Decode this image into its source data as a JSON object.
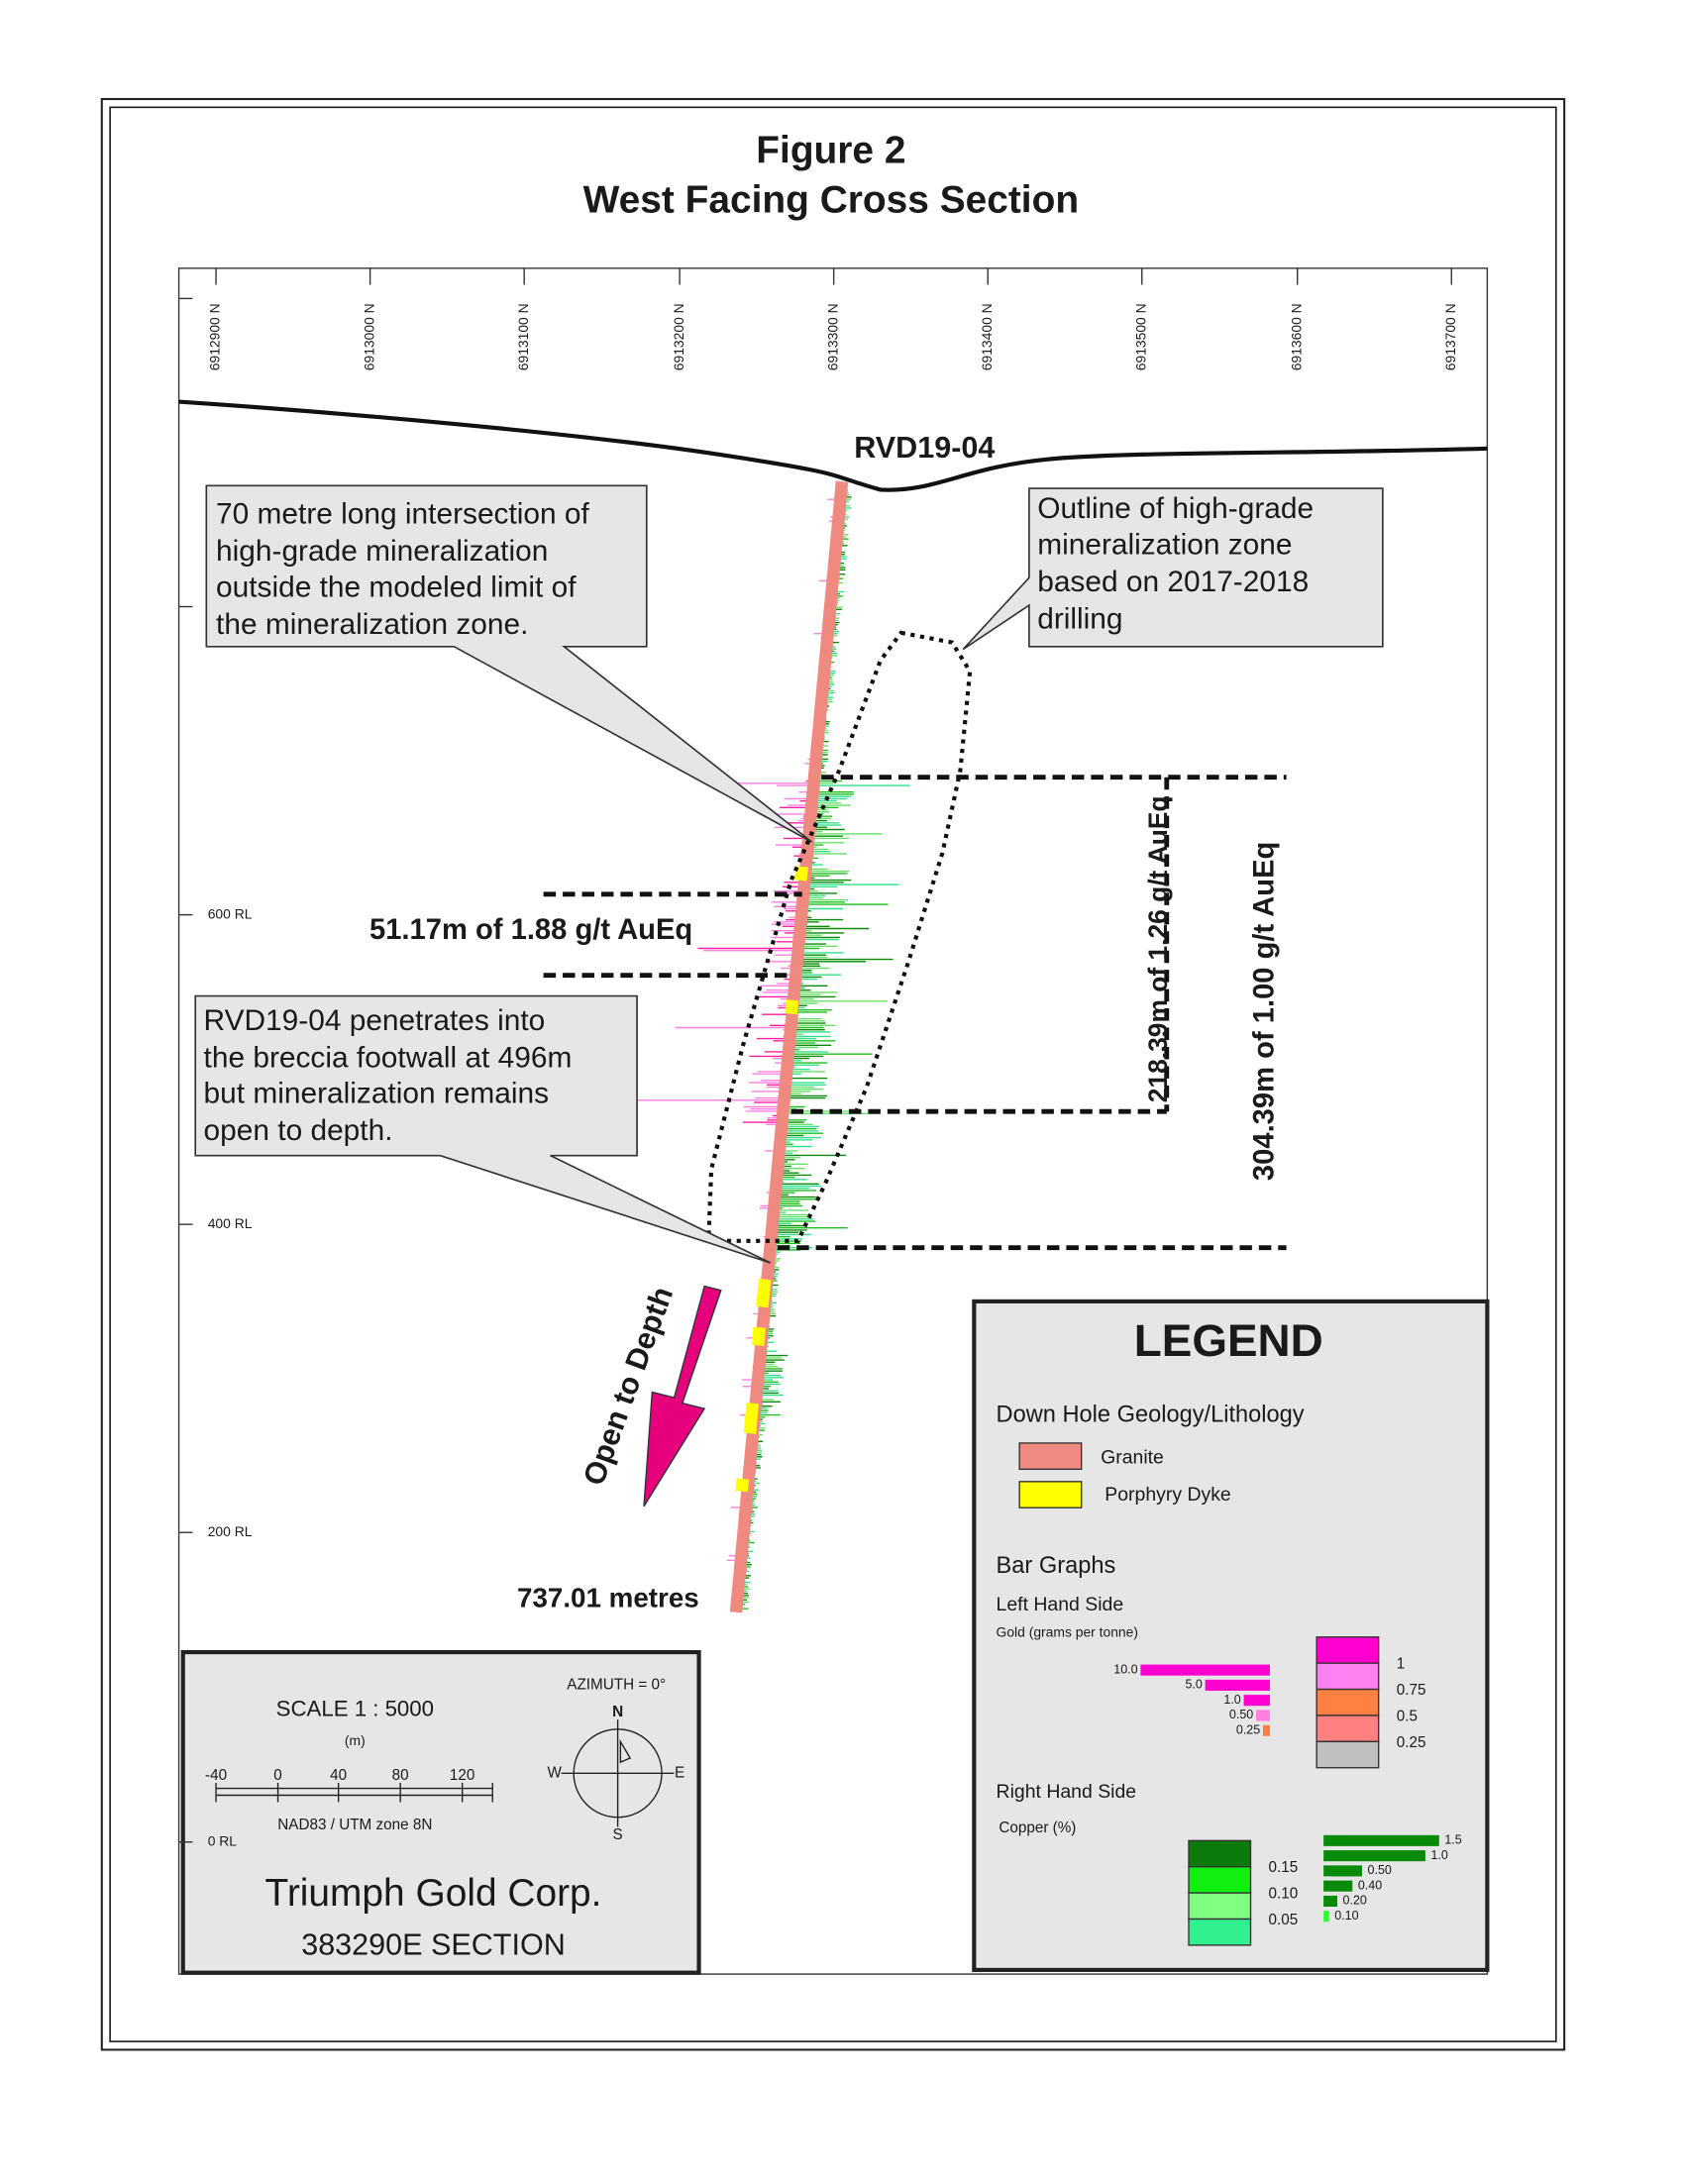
{
  "header": {
    "title": "Figure 2",
    "subtitle": "West Facing Cross Section"
  },
  "northings": [
    "6912900 N",
    "6913000 N",
    "6913100 N",
    "6913200 N",
    "6913300 N",
    "6913400 N",
    "6913500 N",
    "6913600 N",
    "6913700 N"
  ],
  "elevations": [
    "600 RL",
    "400 RL",
    "200 RL",
    "0 RL"
  ],
  "drill_hole": {
    "name": "RVD19-04",
    "length": "737.01 metres"
  },
  "intercepts": [
    "51.17m of 1.88 g/t AuEq",
    "218.39m of 1.26 g/t AuEq",
    "304.39m of 1.00 g/t AuEq"
  ],
  "callouts": [
    {
      "lines": [
        "70 metre long intersection of",
        "high-grade mineralization",
        "outside the modeled limit of",
        "the mineralization zone."
      ]
    },
    {
      "lines": [
        "Outline of high-grade",
        "mineralization zone",
        "based on 2017-2018",
        "drilling"
      ]
    },
    {
      "lines": [
        "RVD19-04 penetrates into",
        "the breccia footwall at 496m",
        "but mineralization remains",
        "open to depth."
      ]
    }
  ],
  "arrow_label": "Open to Depth",
  "legend": {
    "title": "LEGEND",
    "lithology_heading": "Down Hole Geology/Lithology",
    "lithology": [
      "Granite",
      "Porphyry Dyke"
    ],
    "bar_heading": "Bar Graphs",
    "left_heading": "Left Hand Side",
    "gold_heading": "Gold  (grams per tonne)",
    "gold_bars": [
      "10.0",
      "5.0",
      "1.0",
      "0.50",
      "0.25"
    ],
    "gold_swatches": [
      "1",
      "0.75",
      "0.5",
      "0.25"
    ],
    "right_heading": "Right Hand Side",
    "copper_heading": "Copper   (%)",
    "copper_bars": [
      "1.5",
      "1.0",
      "0.50",
      "0.40",
      "0.20",
      "0.10"
    ],
    "copper_swatches": [
      "0.15",
      "0.10",
      "0.05"
    ]
  },
  "scale_box": {
    "scale": "SCALE   1 : 5000",
    "unit": "(m)",
    "ticks": [
      "-40",
      "0",
      "40",
      "80",
      "120"
    ],
    "datum": "NAD83 / UTM zone 8N",
    "azimuth": "AZIMUTH = 0°",
    "compass": [
      "N",
      "S",
      "W",
      "E"
    ],
    "company": "Triumph Gold Corp.",
    "section": "383290E  SECTION"
  }
}
